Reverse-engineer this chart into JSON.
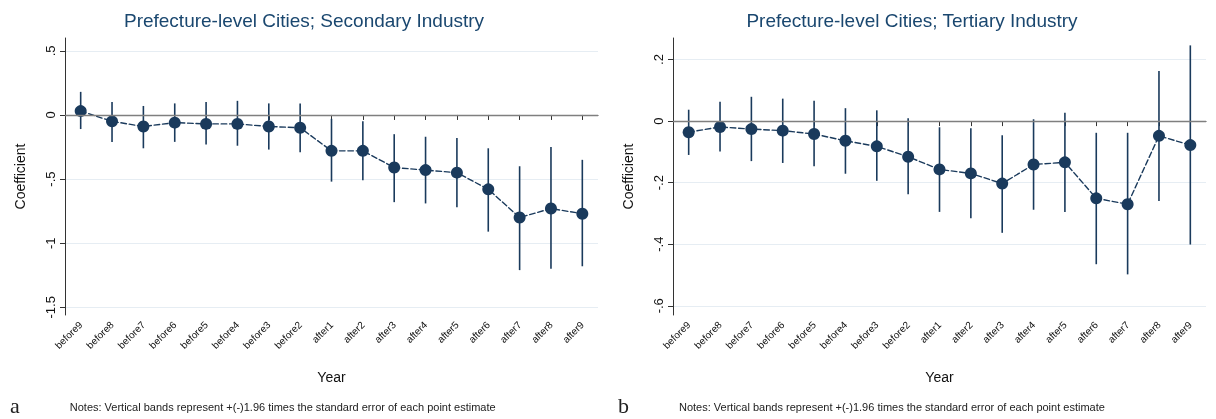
{
  "chart_data": [
    {
      "type": "line",
      "title": "Prefecture-level Cities; Secondary Industry",
      "xlabel": "Year",
      "ylabel": "Coefficient",
      "categories": [
        "before9",
        "before8",
        "before7",
        "before6",
        "before5",
        "before4",
        "before3",
        "before2",
        "after1",
        "after2",
        "after3",
        "after4",
        "after5",
        "after6",
        "after7",
        "after8",
        "after9"
      ],
      "series": [
        {
          "color": "#1a3a5c",
          "values": [
            0.03,
            -0.05,
            -0.09,
            -0.06,
            -0.07,
            -0.07,
            -0.09,
            -0.1,
            -0.28,
            -0.28,
            -0.41,
            -0.43,
            -0.45,
            -0.58,
            -0.8,
            -0.73,
            -0.77
          ],
          "errors": [
            [
              -0.11,
              0.18
            ],
            [
              -0.21,
              0.1
            ],
            [
              -0.26,
              0.07
            ],
            [
              -0.21,
              0.09
            ],
            [
              -0.23,
              0.1
            ],
            [
              -0.24,
              0.11
            ],
            [
              -0.27,
              0.09
            ],
            [
              -0.29,
              0.09
            ],
            [
              -0.52,
              -0.03
            ],
            [
              -0.51,
              -0.05
            ],
            [
              -0.68,
              -0.15
            ],
            [
              -0.69,
              -0.17
            ],
            [
              -0.72,
              -0.18
            ],
            [
              -0.91,
              -0.26
            ],
            [
              -1.21,
              -0.4
            ],
            [
              -1.2,
              -0.25
            ],
            [
              -1.18,
              -0.35
            ]
          ]
        }
      ],
      "ylim": [
        -1.56,
        0.6
      ],
      "yticks": [
        {
          "value": 0.5,
          "label": ".5"
        },
        0,
        {
          "value": -0.5,
          "label": "-.5"
        },
        -1,
        -1.5
      ],
      "ref_lines": [
        {
          "axis": "y",
          "value": 0,
          "color": "#7f7f7f"
        }
      ],
      "grid": "y",
      "marker": "circle",
      "line_style": "dashed",
      "annotations": [
        "a",
        "Notes: Vertical bands represent +(-)1.96 times the standard error of each point estimate"
      ]
    },
    {
      "type": "line",
      "title": "Prefecture-level Cities; Tertiary Industry",
      "xlabel": "Year",
      "ylabel": "Coefficient",
      "categories": [
        "before9",
        "before8",
        "before7",
        "before6",
        "before5",
        "before4",
        "before3",
        "before2",
        "after1",
        "after2",
        "after3",
        "after4",
        "after5",
        "after6",
        "after7",
        "after8",
        "after9"
      ],
      "series": [
        {
          "color": "#1a3a5c",
          "values": [
            -0.036,
            -0.019,
            -0.026,
            -0.031,
            -0.042,
            -0.064,
            -0.082,
            -0.116,
            -0.157,
            -0.17,
            -0.203,
            -0.141,
            -0.134,
            -0.251,
            -0.27,
            -0.048,
            -0.078
          ],
          "errors": [
            [
              -0.11,
              0.037
            ],
            [
              -0.099,
              0.063
            ],
            [
              -0.13,
              0.079
            ],
            [
              -0.136,
              0.073
            ],
            [
              -0.147,
              0.066
            ],
            [
              -0.171,
              0.042
            ],
            [
              -0.194,
              0.035
            ],
            [
              -0.238,
              0.009
            ],
            [
              -0.295,
              -0.02
            ],
            [
              -0.316,
              -0.023
            ],
            [
              -0.363,
              -0.046
            ],
            [
              -0.288,
              0.006
            ],
            [
              -0.295,
              0.027
            ],
            [
              -0.465,
              -0.038
            ],
            [
              -0.498,
              -0.038
            ],
            [
              -0.26,
              0.163
            ],
            [
              -0.401,
              0.246
            ]
          ]
        }
      ],
      "ylim": [
        -0.63,
        0.27
      ],
      "yticks": [
        {
          "value": 0.2,
          "label": ".2"
        },
        0,
        {
          "value": -0.2,
          "label": "-.2"
        },
        {
          "value": -0.4,
          "label": "-.4"
        },
        {
          "value": -0.6,
          "label": "-.6"
        }
      ],
      "ref_lines": [
        {
          "axis": "y",
          "value": 0,
          "color": "#7f7f7f"
        }
      ],
      "grid": "y",
      "marker": "circle",
      "line_style": "dashed",
      "annotations": [
        "b",
        "Notes: Vertical bands represent +(-)1.96 times the standard error of each point estimate"
      ]
    }
  ]
}
